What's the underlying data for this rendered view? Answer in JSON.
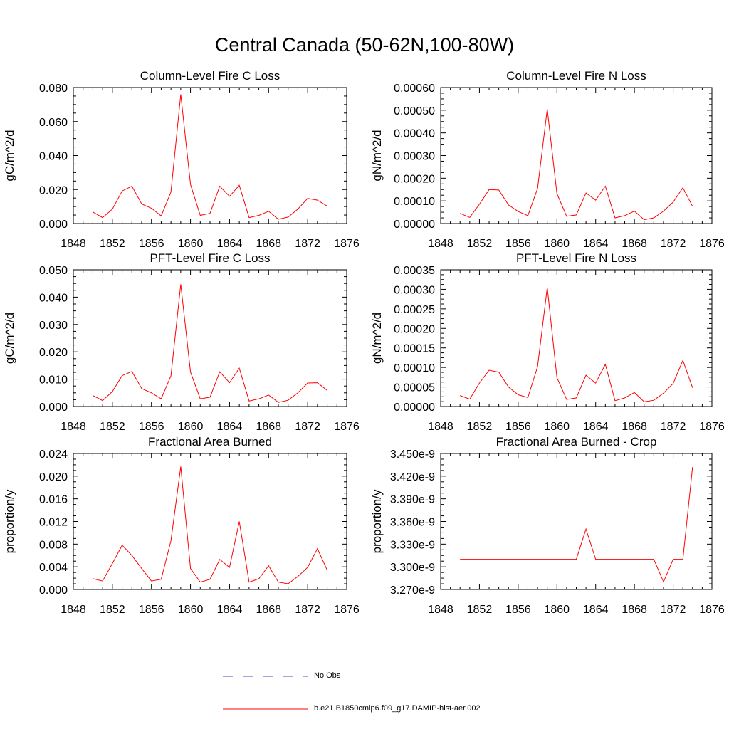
{
  "title": "Central Canada (50-62N,100-80W)",
  "colors": {
    "model": "#ff0000",
    "obs": "#3b4cc0",
    "axis": "#000000"
  },
  "legend": {
    "items": [
      {
        "label": "No Obs",
        "style": "dashed",
        "color": "#3b4cc0"
      },
      {
        "label": "b.e21.B1850cmip6.f09_g17.DAMIP-hist-aer.002",
        "style": "solid",
        "color": "#ff0000"
      }
    ]
  },
  "chart_data": [
    {
      "type": "line",
      "title": "Column-Level Fire C Loss",
      "ylabel": "gC/m^2/d",
      "xlim": [
        1848,
        1876
      ],
      "ylim": [
        0,
        0.08
      ],
      "xticks": [
        1848,
        1852,
        1856,
        1860,
        1864,
        1868,
        1872,
        1876
      ],
      "xtick_labels": [
        "1848",
        "1852",
        "1856",
        "1860",
        "1864",
        "1868",
        "1872",
        "1876"
      ],
      "yticks": [
        0,
        0.02,
        0.04,
        0.06,
        0.08
      ],
      "ytick_labels": [
        "0.000",
        "0.020",
        "0.040",
        "0.060",
        "0.080"
      ],
      "x": [
        1850,
        1851,
        1852,
        1853,
        1854,
        1855,
        1856,
        1857,
        1858,
        1859,
        1860,
        1861,
        1862,
        1863,
        1864,
        1865,
        1866,
        1867,
        1868,
        1869,
        1870,
        1871,
        1872,
        1873,
        1874
      ],
      "series": [
        {
          "name": "b.e21.B1850cmip6.f09_g17.DAMIP-hist-aer.002",
          "values": [
            0.0068,
            0.0035,
            0.0085,
            0.0192,
            0.022,
            0.0115,
            0.009,
            0.0045,
            0.0185,
            0.076,
            0.023,
            0.0048,
            0.006,
            0.022,
            0.016,
            0.0225,
            0.0035,
            0.0048,
            0.0072,
            0.0025,
            0.0038,
            0.0085,
            0.0148,
            0.0138,
            0.0102
          ]
        }
      ]
    },
    {
      "type": "line",
      "title": "Column-Level Fire N Loss",
      "ylabel": "gN/m^2/d",
      "xlim": [
        1848,
        1876
      ],
      "ylim": [
        0,
        0.0006
      ],
      "xticks": [
        1848,
        1852,
        1856,
        1860,
        1864,
        1868,
        1872,
        1876
      ],
      "xtick_labels": [
        "1848",
        "1852",
        "1856",
        "1860",
        "1864",
        "1868",
        "1872",
        "1876"
      ],
      "yticks": [
        0,
        0.0001,
        0.0002,
        0.0003,
        0.0004,
        0.0005,
        0.0006
      ],
      "ytick_labels": [
        "0.00000",
        "0.00010",
        "0.00020",
        "0.00030",
        "0.00040",
        "0.00050",
        "0.00060"
      ],
      "x": [
        1850,
        1851,
        1852,
        1853,
        1854,
        1855,
        1856,
        1857,
        1858,
        1859,
        1860,
        1861,
        1862,
        1863,
        1864,
        1865,
        1866,
        1867,
        1868,
        1869,
        1870,
        1871,
        1872,
        1873,
        1874
      ],
      "series": [
        {
          "name": "b.e21.B1850cmip6.f09_g17.DAMIP-hist-aer.002",
          "values": [
            4.5e-05,
            2.7e-05,
            8.5e-05,
            0.00015,
            0.000148,
            8.2e-05,
            5.3e-05,
            3.5e-05,
            0.000155,
            0.000505,
            0.000132,
            3.2e-05,
            3.8e-05,
            0.000135,
            0.000103,
            0.000165,
            2.5e-05,
            3.5e-05,
            5.5e-05,
            1.7e-05,
            2.5e-05,
            5.5e-05,
            9.5e-05,
            0.000158,
            7.6e-05
          ]
        }
      ]
    },
    {
      "type": "line",
      "title": "PFT-Level Fire C Loss",
      "ylabel": "gC/m^2/d",
      "xlim": [
        1848,
        1876
      ],
      "ylim": [
        0,
        0.05
      ],
      "xticks": [
        1848,
        1852,
        1856,
        1860,
        1864,
        1868,
        1872,
        1876
      ],
      "xtick_labels": [
        "1848",
        "1852",
        "1856",
        "1860",
        "1864",
        "1868",
        "1872",
        "1876"
      ],
      "yticks": [
        0,
        0.01,
        0.02,
        0.03,
        0.04,
        0.05
      ],
      "ytick_labels": [
        "0.000",
        "0.010",
        "0.020",
        "0.030",
        "0.040",
        "0.050"
      ],
      "x": [
        1850,
        1851,
        1852,
        1853,
        1854,
        1855,
        1856,
        1857,
        1858,
        1859,
        1860,
        1861,
        1862,
        1863,
        1864,
        1865,
        1866,
        1867,
        1868,
        1869,
        1870,
        1871,
        1872,
        1873,
        1874
      ],
      "series": [
        {
          "name": "b.e21.B1850cmip6.f09_g17.DAMIP-hist-aer.002",
          "values": [
            0.004,
            0.0022,
            0.0055,
            0.0113,
            0.0128,
            0.0066,
            0.005,
            0.0028,
            0.0112,
            0.0447,
            0.0126,
            0.0028,
            0.0034,
            0.0127,
            0.0087,
            0.014,
            0.002,
            0.0028,
            0.0042,
            0.0015,
            0.0023,
            0.005,
            0.0086,
            0.0087,
            0.0059
          ]
        }
      ]
    },
    {
      "type": "line",
      "title": "PFT-Level Fire N Loss",
      "ylabel": "gN/m^2/d",
      "xlim": [
        1848,
        1876
      ],
      "ylim": [
        0,
        0.00035
      ],
      "xticks": [
        1848,
        1852,
        1856,
        1860,
        1864,
        1868,
        1872,
        1876
      ],
      "xtick_labels": [
        "1848",
        "1852",
        "1856",
        "1860",
        "1864",
        "1868",
        "1872",
        "1876"
      ],
      "yticks": [
        0,
        5e-05,
        0.0001,
        0.00015,
        0.0002,
        0.00025,
        0.0003,
        0.00035
      ],
      "ytick_labels": [
        "0.00000",
        "0.00005",
        "0.00010",
        "0.00015",
        "0.00020",
        "0.00025",
        "0.00030",
        "0.00035"
      ],
      "x": [
        1850,
        1851,
        1852,
        1853,
        1854,
        1855,
        1856,
        1857,
        1858,
        1859,
        1860,
        1861,
        1862,
        1863,
        1864,
        1865,
        1866,
        1867,
        1868,
        1869,
        1870,
        1871,
        1872,
        1873,
        1874
      ],
      "series": [
        {
          "name": "b.e21.B1850cmip6.f09_g17.DAMIP-hist-aer.002",
          "values": [
            2.8e-05,
            1.9e-05,
            6e-05,
            9.3e-05,
            8.8e-05,
            5e-05,
            3e-05,
            2.3e-05,
            0.000102,
            0.000305,
            7.4e-05,
            1.8e-05,
            2.2e-05,
            8e-05,
            6e-05,
            0.000108,
            1.5e-05,
            2.2e-05,
            3.6e-05,
            1.2e-05,
            1.6e-05,
            3.4e-05,
            5.9e-05,
            0.000118,
            4.8e-05
          ]
        }
      ]
    },
    {
      "type": "line",
      "title": "Fractional Area Burned",
      "ylabel": "proportion/y",
      "xlim": [
        1848,
        1876
      ],
      "ylim": [
        0,
        0.024
      ],
      "xticks": [
        1848,
        1852,
        1856,
        1860,
        1864,
        1868,
        1872,
        1876
      ],
      "xtick_labels": [
        "1848",
        "1852",
        "1856",
        "1860",
        "1864",
        "1868",
        "1872",
        "1876"
      ],
      "yticks": [
        0,
        0.004,
        0.008,
        0.012,
        0.016,
        0.02,
        0.024
      ],
      "ytick_labels": [
        "0.000",
        "0.004",
        "0.008",
        "0.012",
        "0.016",
        "0.020",
        "0.024"
      ],
      "x": [
        1850,
        1851,
        1852,
        1853,
        1854,
        1855,
        1856,
        1857,
        1858,
        1859,
        1860,
        1861,
        1862,
        1863,
        1864,
        1865,
        1866,
        1867,
        1868,
        1869,
        1870,
        1871,
        1872,
        1873,
        1874
      ],
      "series": [
        {
          "name": "b.e21.B1850cmip6.f09_g17.DAMIP-hist-aer.002",
          "values": [
            0.0019,
            0.0015,
            0.0046,
            0.0078,
            0.006,
            0.0037,
            0.0015,
            0.0018,
            0.0086,
            0.0217,
            0.0037,
            0.0013,
            0.0018,
            0.0053,
            0.0039,
            0.012,
            0.0013,
            0.0019,
            0.0042,
            0.0013,
            0.001,
            0.0023,
            0.0039,
            0.0072,
            0.0034
          ]
        }
      ]
    },
    {
      "type": "line",
      "title": "Fractional Area Burned - Crop",
      "ylabel": "proportion/y",
      "xlim": [
        1848,
        1876
      ],
      "ylim": [
        3.27e-09,
        3.45e-09
      ],
      "xticks": [
        1848,
        1852,
        1856,
        1860,
        1864,
        1868,
        1872,
        1876
      ],
      "xtick_labels": [
        "1848",
        "1852",
        "1856",
        "1860",
        "1864",
        "1868",
        "1872",
        "1876"
      ],
      "yticks": [
        3.27e-09,
        3.3e-09,
        3.33e-09,
        3.36e-09,
        3.39e-09,
        3.42e-09,
        3.45e-09
      ],
      "ytick_labels": [
        "3.270e-9",
        "3.300e-9",
        "3.330e-9",
        "3.360e-9",
        "3.390e-9",
        "3.420e-9",
        "3.450e-9"
      ],
      "x": [
        1850,
        1851,
        1852,
        1853,
        1854,
        1855,
        1856,
        1857,
        1858,
        1859,
        1860,
        1861,
        1862,
        1863,
        1864,
        1865,
        1866,
        1867,
        1868,
        1869,
        1870,
        1871,
        1872,
        1873,
        1874
      ],
      "series": [
        {
          "name": "b.e21.B1850cmip6.f09_g17.DAMIP-hist-aer.002",
          "values": [
            3.31e-09,
            3.31e-09,
            3.31e-09,
            3.31e-09,
            3.31e-09,
            3.31e-09,
            3.31e-09,
            3.31e-09,
            3.31e-09,
            3.31e-09,
            3.31e-09,
            3.31e-09,
            3.31e-09,
            3.35e-09,
            3.31e-09,
            3.31e-09,
            3.31e-09,
            3.31e-09,
            3.31e-09,
            3.31e-09,
            3.31e-09,
            3.28e-09,
            3.31e-09,
            3.31e-09,
            3.432e-09
          ]
        }
      ]
    }
  ]
}
